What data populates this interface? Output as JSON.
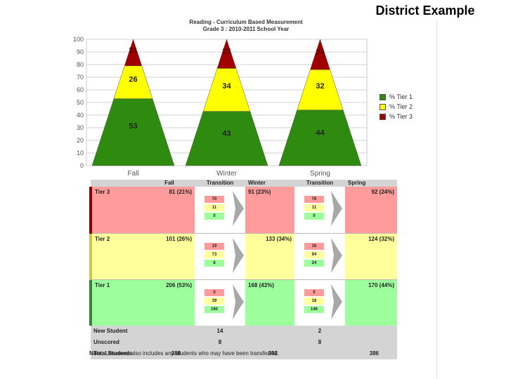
{
  "slide": {
    "title": "District Example"
  },
  "chart_data": {
    "type": "area",
    "title": "Reading - Curriculum Based Measurement",
    "subtitle": "Grade 3 : 2010-2011 School Year",
    "categories": [
      "Fall",
      "Winter",
      "Spring"
    ],
    "ylim": [
      0,
      100
    ],
    "yticks": [
      0,
      10,
      20,
      30,
      40,
      50,
      60,
      70,
      80,
      90,
      100
    ],
    "grid": true,
    "legend_position": "right",
    "series": [
      {
        "name": "% Tier 1",
        "color": "#2e8b0f",
        "values": [
          53,
          43,
          44
        ]
      },
      {
        "name": "% Tier 2",
        "color": "#ffff00",
        "values": [
          26,
          34,
          32
        ]
      },
      {
        "name": "% Tier 3",
        "color": "#a00000",
        "values": [
          21,
          23,
          24
        ]
      }
    ]
  },
  "table": {
    "headers": [
      "",
      "Fall",
      "Transition",
      "Winter",
      "Transition",
      "Spring"
    ],
    "rows": [
      {
        "label": "Tier 3",
        "fall": "81 (21%)",
        "trans1": [
          "70",
          "11",
          "0"
        ],
        "winter": "91 (23%)",
        "trans2": [
          "76",
          "11",
          "0"
        ],
        "spring": "92 (24%)"
      },
      {
        "label": "Tier 2",
        "fall": "101 (26%)",
        "trans1": [
          "19",
          "73",
          "8"
        ],
        "winter": "133 (34%)",
        "trans2": [
          "16",
          "94",
          "24"
        ],
        "spring": "124 (32%)"
      },
      {
        "label": "Tier 1",
        "fall": "206 (53%)",
        "trans1": [
          "0",
          "39",
          "160"
        ],
        "winter": "168 (43%)",
        "trans2": [
          "0",
          "18",
          "146"
        ],
        "spring": "170 (44%)"
      }
    ],
    "footer": {
      "new_student": {
        "label": "New Student",
        "trans1": "14",
        "trans2": "2"
      },
      "unscored": {
        "label": "Unscored",
        "trans1": "8",
        "trans2": "8"
      },
      "total": {
        "label": "Total Students",
        "fall": "388",
        "winter": "392",
        "spring": "386"
      }
    }
  },
  "note": {
    "prefix": "Note:",
    "text": "Unscored also includes any students who may have been transferred."
  }
}
